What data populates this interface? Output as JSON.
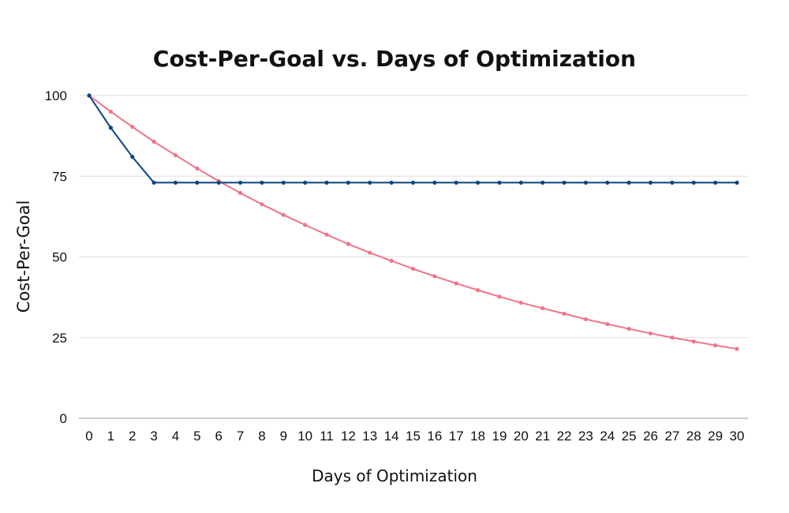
{
  "chart_data": {
    "type": "line",
    "title": "Cost-Per-Goal vs. Days of Optimization",
    "xlabel": "Days of Optimization",
    "ylabel": "Cost-Per-Goal",
    "x": [
      0,
      1,
      2,
      3,
      4,
      5,
      6,
      7,
      8,
      9,
      10,
      11,
      12,
      13,
      14,
      15,
      16,
      17,
      18,
      19,
      20,
      21,
      22,
      23,
      24,
      25,
      26,
      27,
      28,
      29,
      30
    ],
    "ylim": [
      0,
      100
    ],
    "yticks": [
      0,
      25,
      50,
      75,
      100
    ],
    "grid": true,
    "series": [
      {
        "color": "#0b4481",
        "values": [
          100,
          90,
          81,
          73,
          73,
          73,
          73,
          73,
          73,
          73,
          73,
          73,
          73,
          73,
          73,
          73,
          73,
          73,
          73,
          73,
          73,
          73,
          73,
          73,
          73,
          73,
          73,
          73,
          73,
          73,
          73
        ]
      },
      {
        "color": "#f07489",
        "values": [
          100,
          95,
          90.3,
          85.7,
          81.5,
          77.4,
          73.5,
          69.8,
          66.3,
          63,
          59.9,
          56.9,
          54,
          51.3,
          48.8,
          46.3,
          44,
          41.8,
          39.7,
          37.7,
          35.8,
          34.1,
          32.4,
          30.7,
          29.2,
          27.7,
          26.3,
          25,
          23.8,
          22.6,
          21.5
        ]
      }
    ]
  }
}
